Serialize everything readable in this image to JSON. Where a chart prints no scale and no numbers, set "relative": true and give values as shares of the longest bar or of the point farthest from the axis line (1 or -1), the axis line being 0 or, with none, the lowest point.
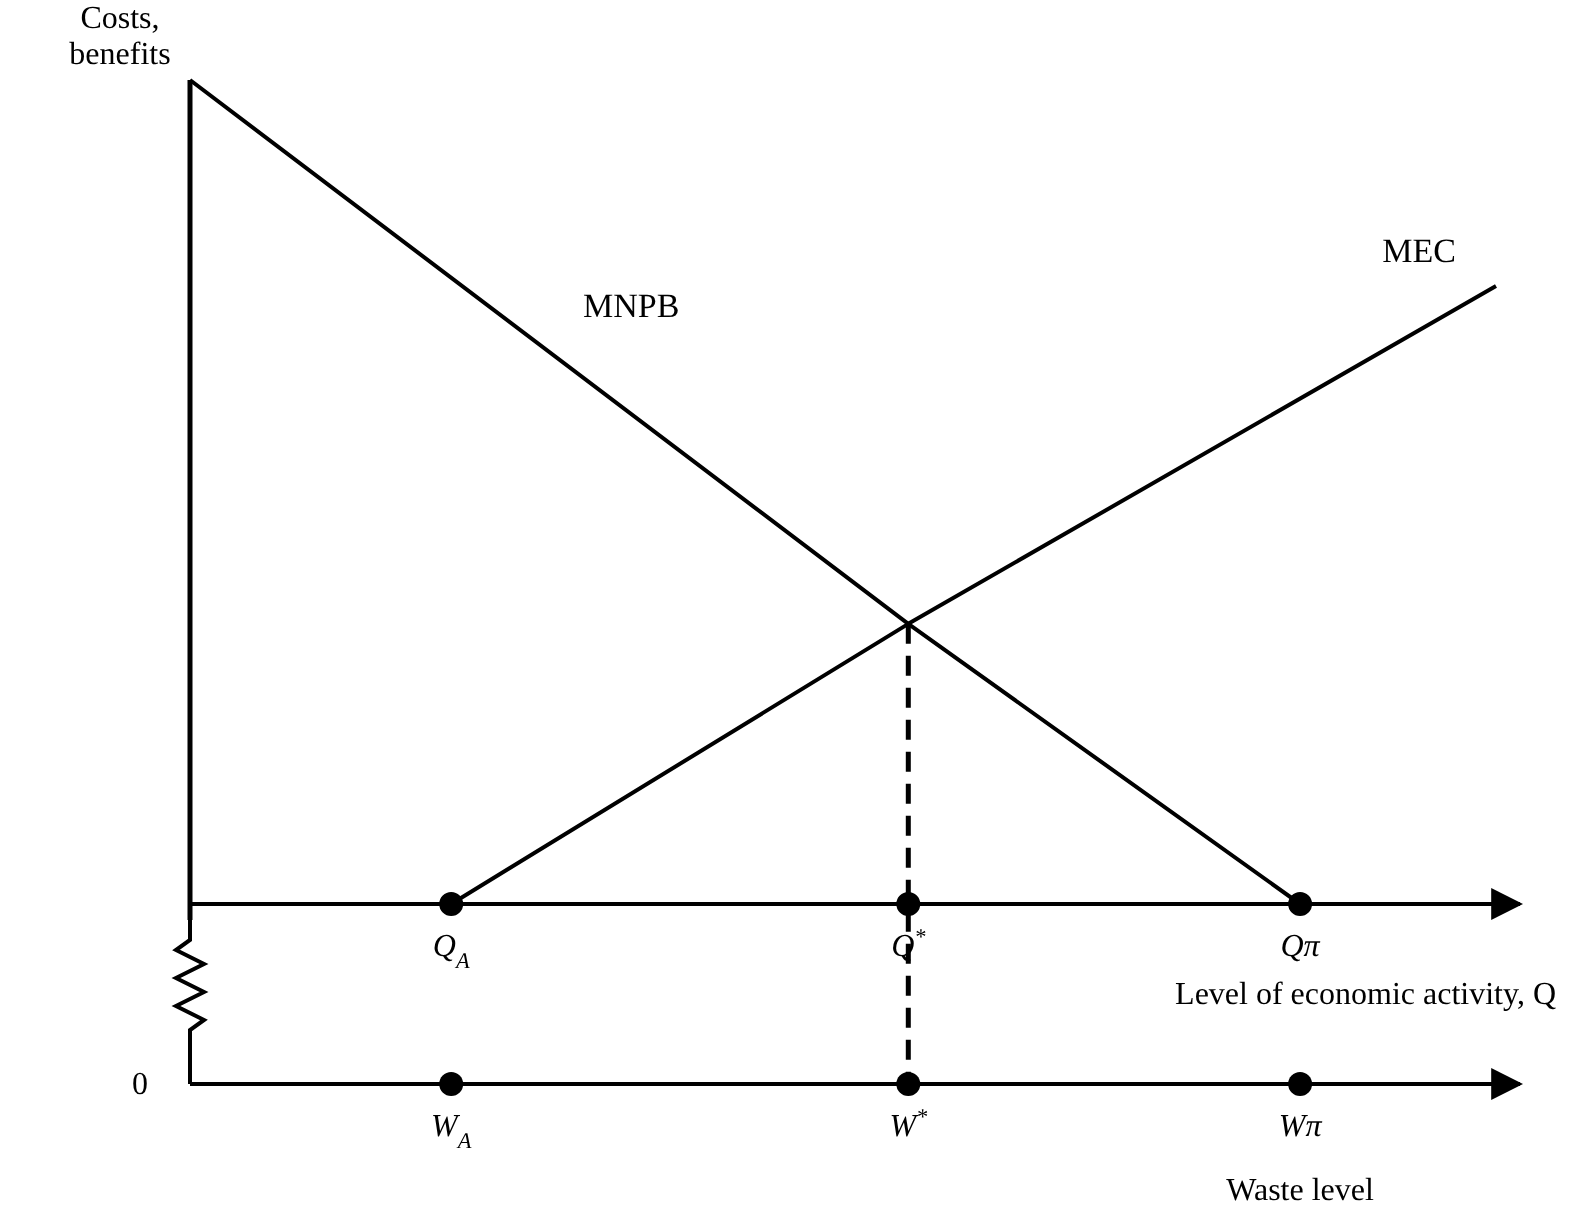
{
  "chart_data": {
    "type": "line",
    "relative": true,
    "ylabel": "Costs, benefits",
    "xlabel": "Level of economic activity, Q",
    "x2label": "Waste level",
    "categories": [
      null,
      null,
      null,
      null,
      "Q$_{A}$",
      null,
      null,
      null,
      null,
      null,
      null,
      "Q$^{*}$",
      null,
      null,
      null,
      null,
      null,
      "Qπ",
      null,
      null,
      null
    ],
    "series": [
      {
        "name": "MNPB",
        "color": "#000000",
        "values": [
          1,
          null,
          null,
          null,
          null,
          null,
          null,
          null,
          null,
          null,
          null,
          0.34,
          null,
          null,
          null,
          null,
          null,
          0,
          null,
          null,
          null
        ]
      },
      {
        "name": "MEC",
        "color": "#000000",
        "values": [
          null,
          null,
          null,
          null,
          0,
          null,
          null,
          null,
          null,
          null,
          null,
          0.34,
          null,
          null,
          null,
          null,
          null,
          null,
          null,
          null,
          0.75
        ]
      },
      {
        "type": "scatter",
        "marker": "circle",
        "color": "#000000",
        "values": [
          null,
          null,
          null,
          null,
          0,
          null,
          null,
          null,
          null,
          null,
          null,
          0,
          null,
          null,
          null,
          null,
          null,
          0,
          null,
          null,
          null
        ]
      }
    ],
    "ref_lines": [
      {
        "axis": "x",
        "value": "Q$^{*}$",
        "line_style": "dashed"
      }
    ],
    "annotations": [
      "0",
      "W$_{A}$",
      "W$^{*}$",
      "Wπ"
    ],
    "legend": false
  }
}
